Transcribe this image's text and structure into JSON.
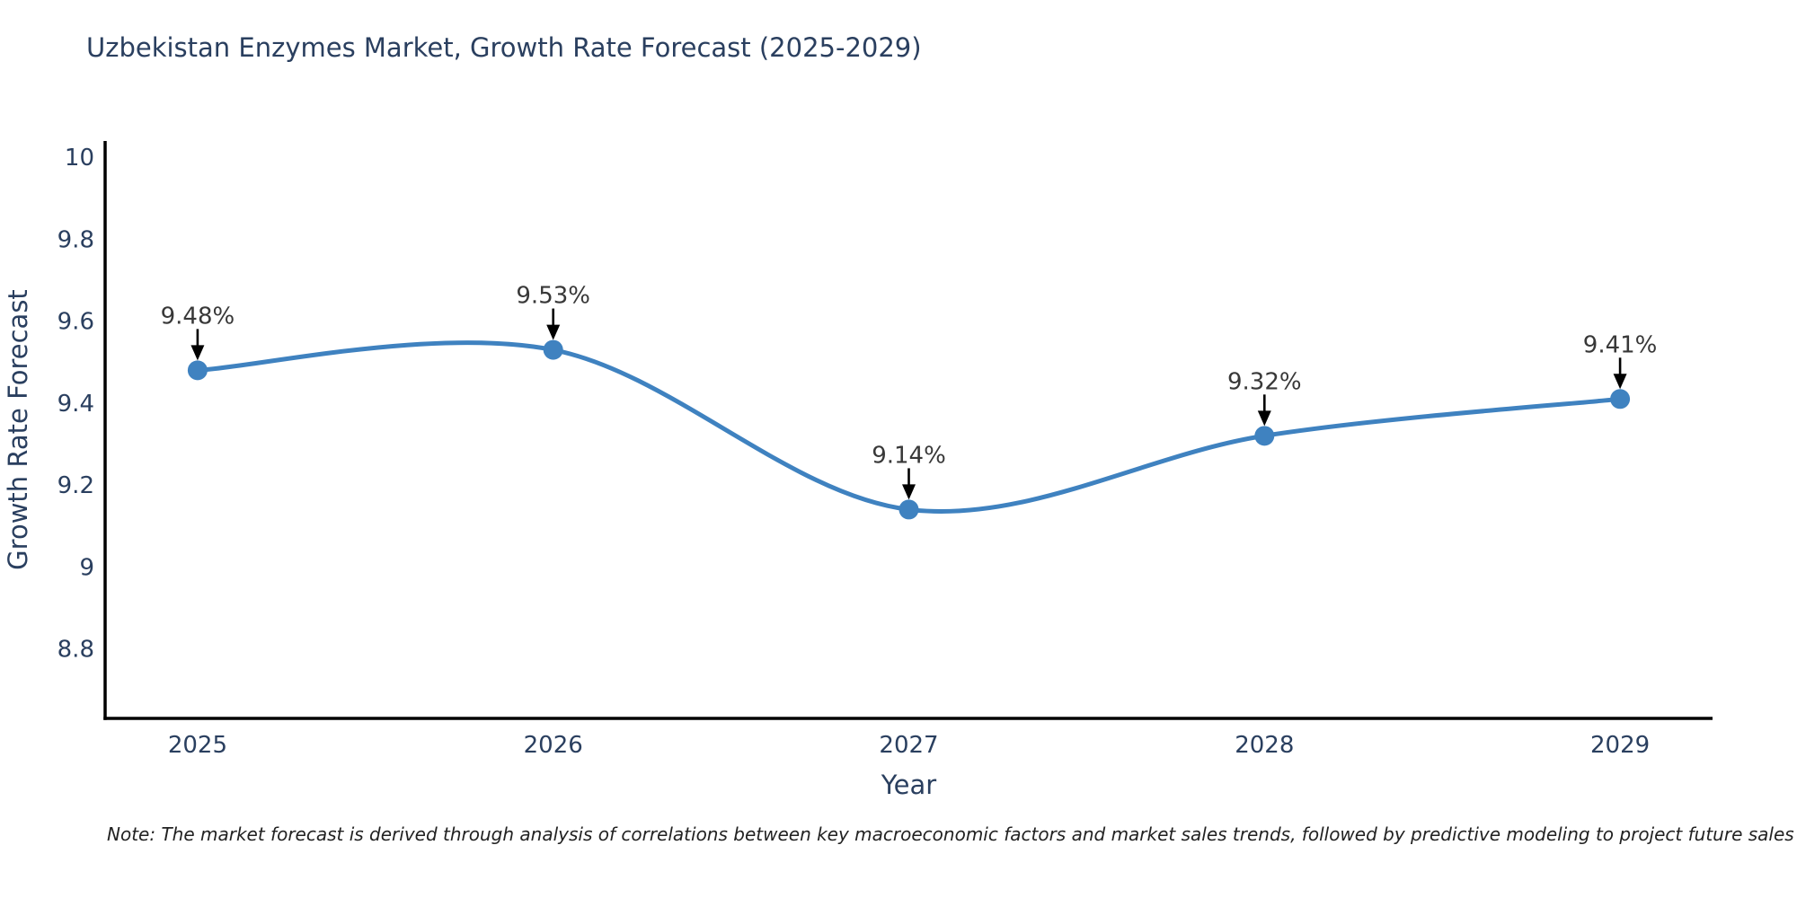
{
  "page": {
    "note": "Note: The market forecast is derived through analysis of correlations between key macroeconomic factors and market sales trends, followed by predictive modeling to project future sales"
  },
  "chart_data": {
    "type": "line",
    "title": "Uzbekistan Enzymes Market, Growth Rate Forecast (2025-2029)",
    "xlabel": "Year",
    "ylabel": "Growth Rate Forecast",
    "x": [
      2025,
      2026,
      2027,
      2028,
      2029
    ],
    "x_tick_labels": [
      "2025",
      "2026",
      "2027",
      "2028",
      "2029"
    ],
    "series": [
      {
        "name": "Growth Rate Forecast",
        "values": [
          9.48,
          9.53,
          9.14,
          9.32,
          9.41
        ]
      }
    ],
    "point_labels": [
      "9.48%",
      "9.53%",
      "9.14%",
      "9.32%",
      "9.41%"
    ],
    "y_ticks": [
      8.8,
      9,
      9.2,
      9.4,
      9.6,
      9.8,
      10
    ],
    "y_tick_labels": [
      "8.8",
      "9",
      "9.2",
      "9.4",
      "9.6",
      "9.8",
      "10"
    ],
    "xlim": [
      2024.74,
      2029.26
    ],
    "ylim": [
      8.63,
      10.04
    ],
    "line_shape": "spline",
    "grid": false,
    "legend": "none",
    "colors": {
      "line": "#3f82c0",
      "marker": "#3f82c0",
      "axis_line": "#000000",
      "tick_text": "#2a3f5f",
      "title_text": "#2a3f5f",
      "annotation_text": "#383838",
      "arrow": "#000000",
      "background": "#ffffff"
    }
  }
}
